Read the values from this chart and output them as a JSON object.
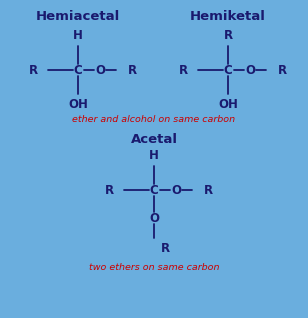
{
  "bg_color": "#6aaede",
  "text_color": "#1a1a6e",
  "red_color": "#cc0000",
  "title1": "Hemiacetal",
  "title2": "Hemiketal",
  "title3": "Acetal",
  "caption1": "ether and alcohol on same carbon",
  "caption2": "two ethers on same carbon",
  "figsize": [
    3.08,
    3.18
  ],
  "dpi": 100
}
